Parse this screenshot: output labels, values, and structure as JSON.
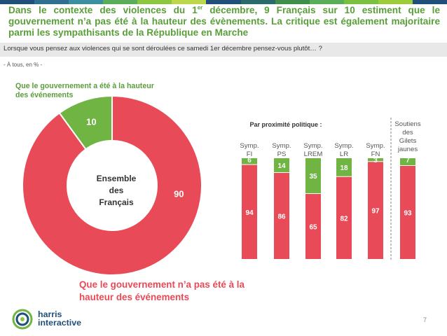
{
  "slide": {
    "title_part1": "Dans le contexte des violences du 1",
    "title_sup": "er",
    "title_part2": " décembre, 9 Français sur 10 estiment que le gouvernement n’a pas été à la hauteur des évènements. La critique est également majoritaire parmi les sympathisants de la République en Marche",
    "question": "Lorsque vous pensez aux violences qui se sont déroulées ce samedi 1er décembre pensez-vous plutôt… ?",
    "base": "- À tous, en % -",
    "label_positive": "Que le gouvernement a été à la hauteur des événements",
    "label_negative": "Que le gouvernement n’a pas été à la hauteur des événements",
    "page_number": "7",
    "logo_line1": "harris",
    "logo_line2": "interactive",
    "topbar_colors": [
      "#1f4f7a",
      "#2f6f8f",
      "#3a8fa0",
      "#5aae5a",
      "#8cc63f",
      "#bcd84a",
      "#1f4f7a",
      "#2a6a6a",
      "#3f8f4a",
      "#5aae5a",
      "#7cc040",
      "#9ccc3a",
      "#1f4f7a"
    ]
  },
  "colors": {
    "green": "#70b444",
    "red": "#e84a57",
    "title_green": "#5a9e3a",
    "navy": "#1f4f7a"
  },
  "chart_data": [
    {
      "type": "pie",
      "variant": "donut",
      "center_label": [
        "Ensemble",
        "des",
        "Français"
      ],
      "slices": [
        {
          "label": "Que le gouvernement a été à la hauteur des événements",
          "value": 10,
          "color": "#70b444"
        },
        {
          "label": "Que le gouvernement n’a pas été à la hauteur des événements",
          "value": 90,
          "color": "#e84a57"
        }
      ]
    },
    {
      "type": "bar",
      "stacked": true,
      "title": "Par proximité politique :",
      "categories": [
        [
          "Symp.",
          "FI"
        ],
        [
          "Symp.",
          "PS"
        ],
        [
          "Symp.",
          "LREM"
        ],
        [
          "Symp.",
          "LR"
        ],
        [
          "Symp.",
          "FN"
        ],
        [
          "Soutiens",
          "des",
          "Gilets",
          "jaunes"
        ]
      ],
      "series": [
        {
          "name": "Que le gouvernement a été à la hauteur des événements",
          "color": "#70b444",
          "values": [
            6,
            14,
            35,
            18,
            3,
            7
          ]
        },
        {
          "name": "Que le gouvernement n’a pas été à la hauteur des événements",
          "color": "#e84a57",
          "values": [
            94,
            86,
            65,
            82,
            97,
            93
          ]
        }
      ],
      "ylim": [
        0,
        100
      ]
    }
  ]
}
